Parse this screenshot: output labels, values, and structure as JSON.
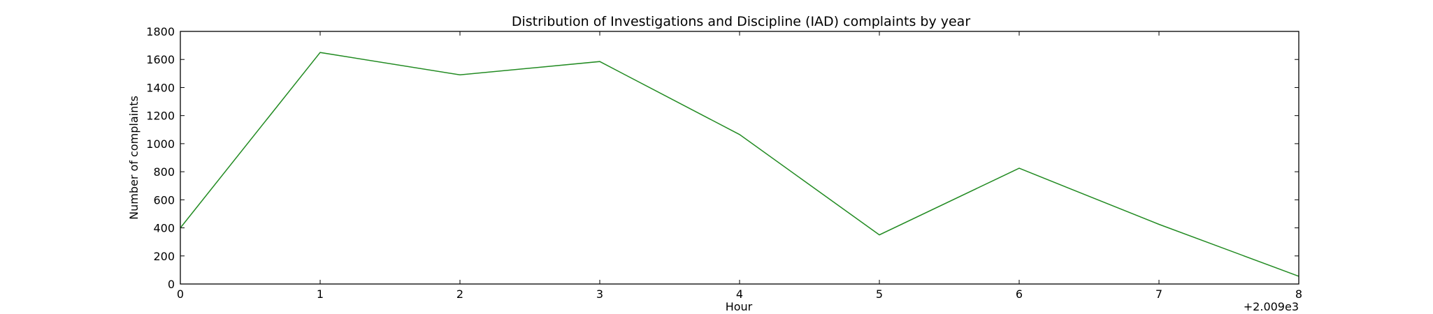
{
  "chart_data": {
    "type": "line",
    "title": "Distribution of  Investigations and Discipline (IAD) complaints by year",
    "xlabel": "Hour",
    "ylabel": "Number of complaints",
    "x_offset_label": "+2.009e3",
    "x": [
      2009,
      2010,
      2011,
      2012,
      2013,
      2014,
      2015,
      2016,
      2017
    ],
    "x_tick_labels": [
      "0",
      "1",
      "2",
      "3",
      "4",
      "5",
      "6",
      "7",
      "8"
    ],
    "xlim": [
      2009,
      2017
    ],
    "ylim": [
      0,
      1800
    ],
    "y_ticks": [
      0,
      200,
      400,
      600,
      800,
      1000,
      1200,
      1400,
      1600,
      1800
    ],
    "grid": false,
    "series": [
      {
        "color": "#228B22",
        "values": [
          400,
          1650,
          1490,
          1585,
          1065,
          350,
          825,
          425,
          55
        ]
      }
    ]
  }
}
